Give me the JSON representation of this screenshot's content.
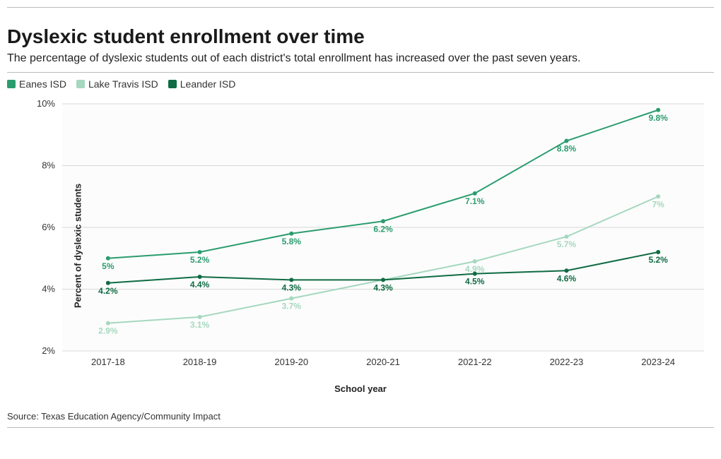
{
  "chart": {
    "type": "line",
    "title": "Dyslexic student enrollment over time",
    "subtitle": "The percentage of dyslexic students out of each district's total enrollment has increased over the past seven years.",
    "source": "Source: Texas Education Agency/Community Impact",
    "x_label": "School year",
    "y_label": "Percent of dyslexic students",
    "categories": [
      "2017-18",
      "2018-19",
      "2019-20",
      "2020-21",
      "2021-22",
      "2022-23",
      "2023-24"
    ],
    "ylim": [
      2,
      10
    ],
    "ytick_step": 2,
    "y_suffix": "%",
    "plot_bg": "#fcfcfc",
    "grid_color": "#d8d8d8",
    "line_width": 2,
    "marker_radius": 3,
    "title_fontsize": 28,
    "subtitle_fontsize": 16,
    "axis_label_fontsize": 13,
    "tick_fontsize": 13,
    "point_label_fontsize": 12,
    "series": [
      {
        "name": "Eanes ISD",
        "color": "#2a9d6e",
        "values": [
          5.0,
          5.2,
          5.8,
          6.2,
          7.1,
          8.8,
          9.8
        ]
      },
      {
        "name": "Lake Travis ISD",
        "color": "#a6d8bf",
        "values": [
          2.9,
          3.1,
          3.7,
          4.3,
          4.9,
          5.7,
          7.0
        ]
      },
      {
        "name": "Leander ISD",
        "color": "#0f6b43",
        "values": [
          4.2,
          4.4,
          4.3,
          4.3,
          4.5,
          4.6,
          5.2
        ]
      }
    ]
  }
}
